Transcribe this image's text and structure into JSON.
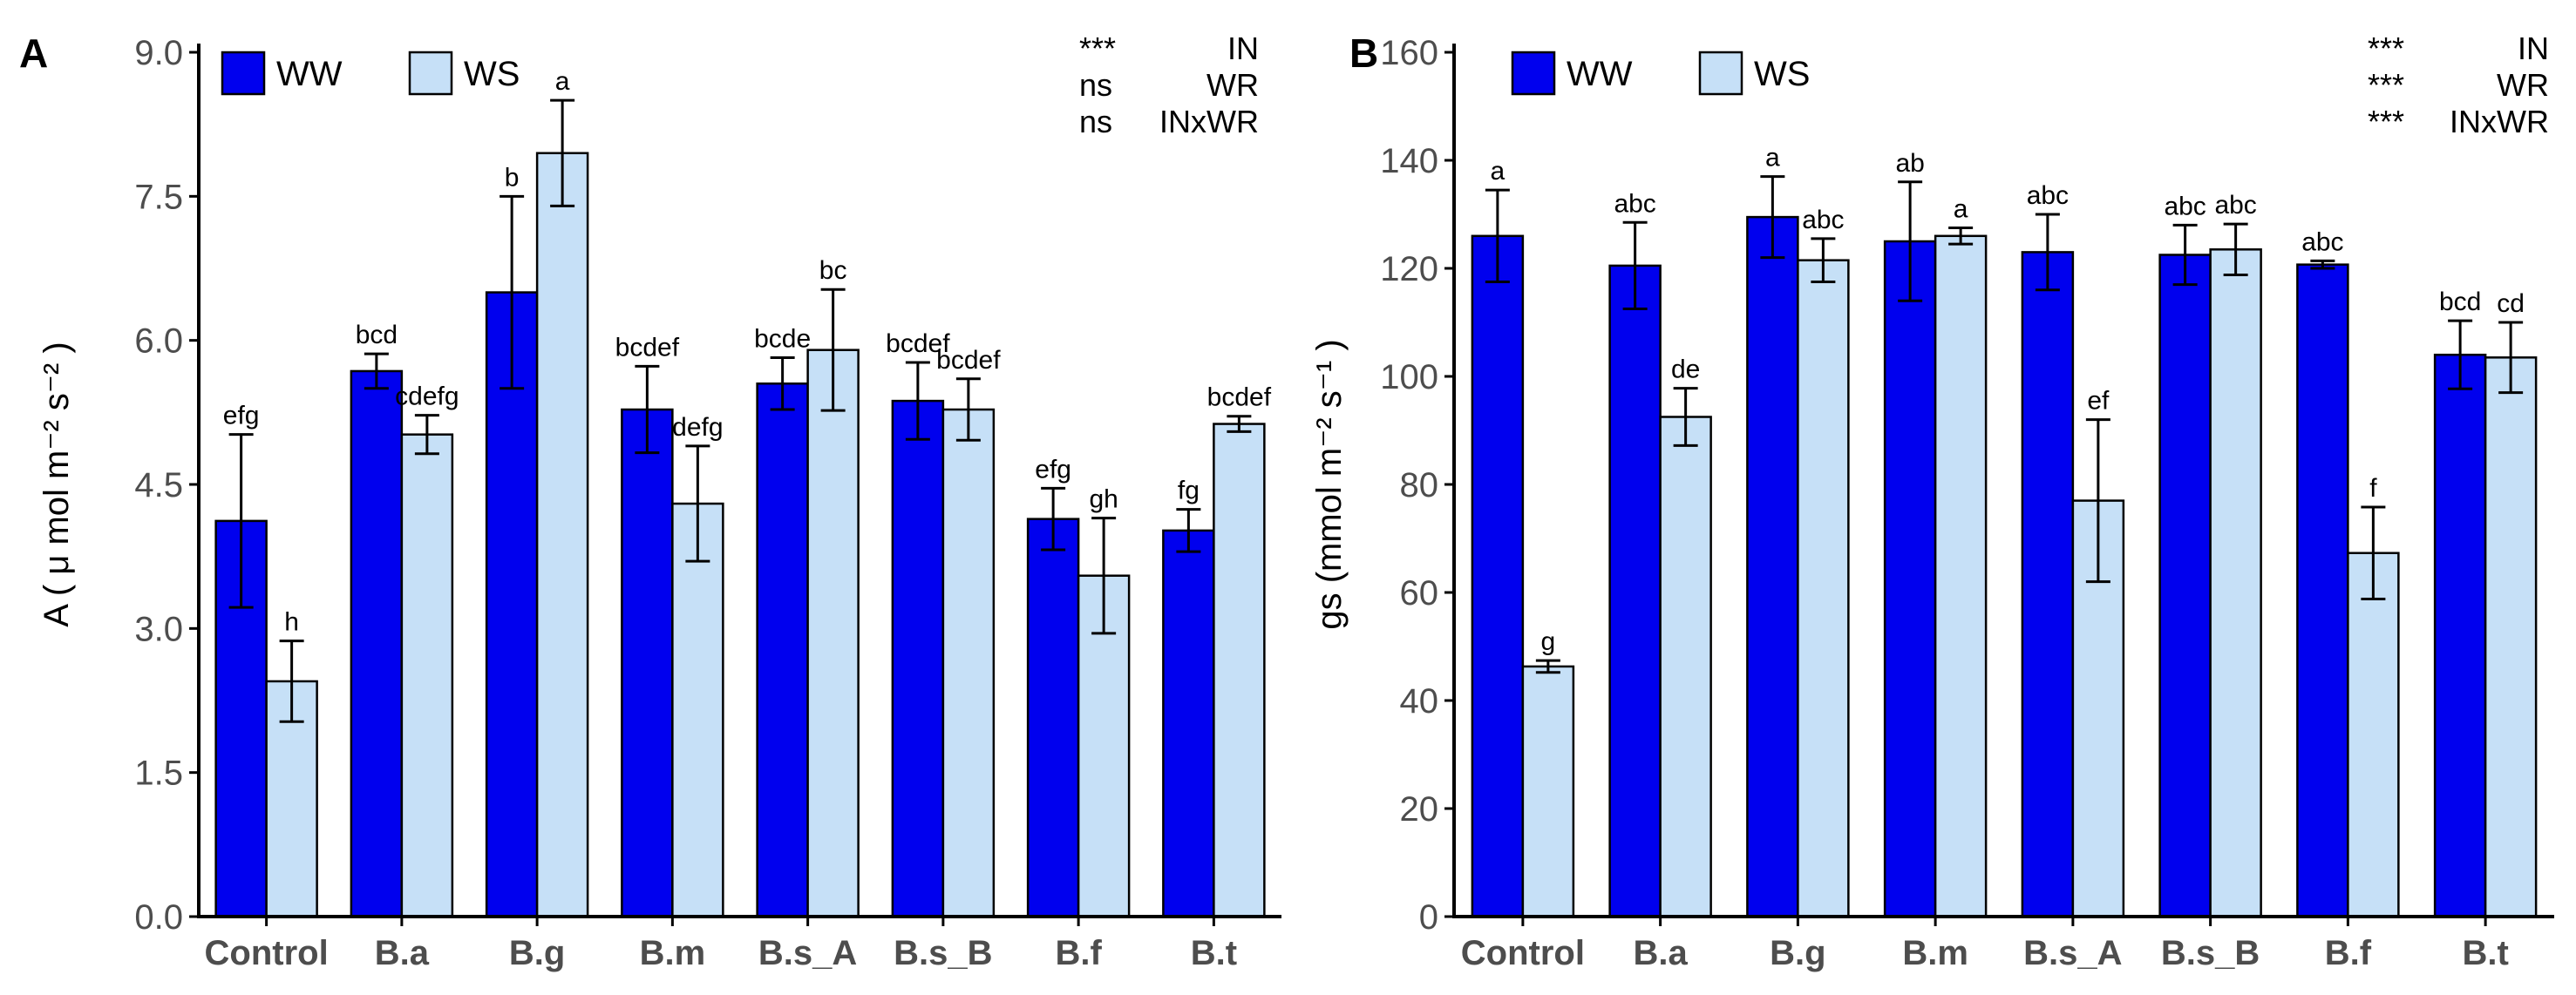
{
  "colors": {
    "ww": "#0000ee",
    "ws": "#c6e0f7",
    "stroke": "#000000",
    "tick_text": "#4d4d4d"
  },
  "chart_data": [
    {
      "type": "bar",
      "panel_label": "A",
      "ylabel": "A ( μ mol m⁻² s⁻² )",
      "ylim": [
        0,
        9
      ],
      "yticks": [
        "0.0",
        "1.5",
        "3.0",
        "4.5",
        "6.0",
        "7.5",
        "9.0"
      ],
      "categories": [
        "Control",
        "B.a",
        "B.g",
        "B.m",
        "B.s_A",
        "B.s_B",
        "B.f",
        "B.t"
      ],
      "legend": [
        "WW",
        "WS"
      ],
      "series": [
        {
          "name": "WW",
          "values": [
            4.12,
            5.68,
            6.5,
            5.28,
            5.55,
            5.37,
            4.14,
            4.02
          ],
          "errors": [
            0.9,
            0.18,
            1.0,
            0.45,
            0.27,
            0.4,
            0.32,
            0.22
          ],
          "letters": [
            "efg",
            "bcd",
            "b",
            "bcdef",
            "bcde",
            "bcdef",
            "efg",
            "fg"
          ]
        },
        {
          "name": "WS",
          "values": [
            2.45,
            5.02,
            7.95,
            4.3,
            5.9,
            5.28,
            3.55,
            5.13
          ],
          "errors": [
            0.42,
            0.2,
            0.55,
            0.6,
            0.63,
            0.32,
            0.6,
            0.08
          ],
          "letters": [
            "h",
            "cdefg",
            "a",
            "defg",
            "bc",
            "bcdef",
            "gh",
            "bcdef"
          ]
        }
      ],
      "significance": [
        {
          "mark": "***",
          "factor": "IN"
        },
        {
          "mark": "ns",
          "factor": "WR"
        },
        {
          "mark": "ns",
          "factor": "INxWR"
        }
      ]
    },
    {
      "type": "bar",
      "panel_label": "B",
      "ylabel": "gs (mmol m⁻² s⁻¹ )",
      "ylim": [
        0,
        160
      ],
      "yticks": [
        "0",
        "20",
        "40",
        "60",
        "80",
        "100",
        "120",
        "140",
        "160"
      ],
      "categories": [
        "Control",
        "B.a",
        "B.g",
        "B.m",
        "B.s_A",
        "B.s_B",
        "B.f",
        "B.t"
      ],
      "legend": [
        "WW",
        "WS"
      ],
      "series": [
        {
          "name": "WW",
          "values": [
            126,
            120.5,
            129.5,
            125,
            123,
            122.5,
            120.7,
            104
          ],
          "errors": [
            8.5,
            8,
            7.5,
            11,
            7,
            5.5,
            0.7,
            6.3
          ],
          "letters": [
            "a",
            "abc",
            "a",
            "ab",
            "abc",
            "abc",
            "abc",
            "bcd"
          ]
        },
        {
          "name": "WS",
          "values": [
            46.3,
            92.5,
            121.5,
            126,
            77,
            123.5,
            67.3,
            103.5
          ],
          "errors": [
            1.1,
            5.3,
            4,
            1.5,
            15,
            4.7,
            8.5,
            6.5
          ],
          "letters": [
            "g",
            "de",
            "abc",
            "a",
            "ef",
            "abc",
            "f",
            "cd"
          ]
        }
      ],
      "significance": [
        {
          "mark": "***",
          "factor": "IN"
        },
        {
          "mark": "***",
          "factor": "WR"
        },
        {
          "mark": "***",
          "factor": "INxWR"
        }
      ]
    }
  ]
}
